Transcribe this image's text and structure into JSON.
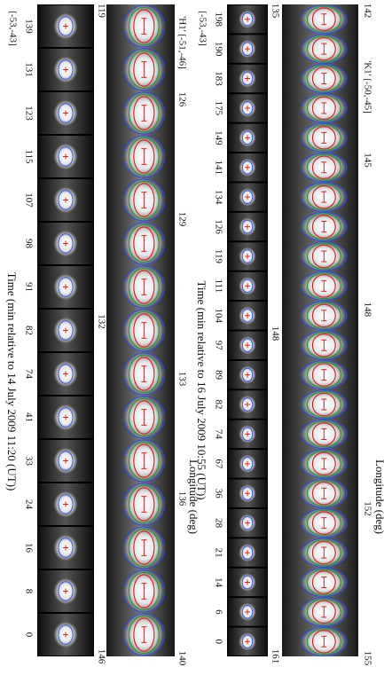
{
  "panels": [
    {
      "strip_label": "[-53,-43]",
      "time_axis_label": "Time (min relative to 14 July 2009 11:20 (UT))",
      "times": [
        139,
        131,
        123,
        115,
        107,
        98,
        91,
        82,
        74,
        41,
        33,
        24,
        16,
        8,
        0
      ],
      "strip_ticks": [
        119,
        132,
        146
      ],
      "title": "'H1' [-51,-46]",
      "longitude_ticks": [
        126,
        129,
        133,
        136,
        140
      ],
      "axis_label": "Longitude (deg)"
    },
    {
      "strip_label": "[-53,-43]",
      "time_axis_label": "Time (min relative to 16 July 2009 10:55 (UT))",
      "times": [
        198,
        190,
        183,
        175,
        149,
        141,
        134,
        126,
        119,
        111,
        104,
        97,
        89,
        82,
        74,
        67,
        36,
        28,
        21,
        14,
        6,
        0
      ],
      "strip_ticks": [
        135,
        148,
        161
      ],
      "title": "'K1' [-50,-45]",
      "longitude_ticks": [
        142,
        145,
        148,
        152,
        155
      ],
      "axis_label": "Longitude (deg)"
    }
  ]
}
